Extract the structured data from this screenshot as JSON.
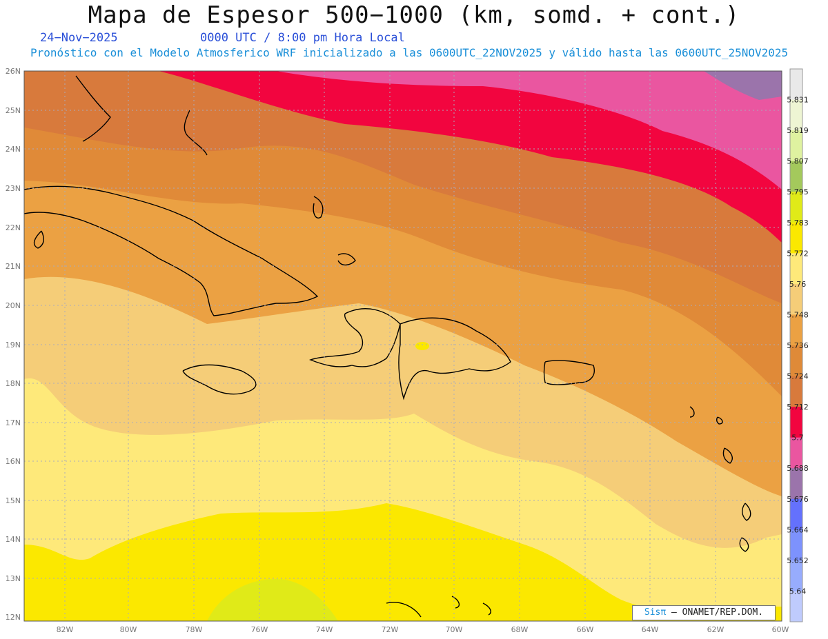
{
  "header": {
    "title": "Mapa de Espesor 500−1000 (km, somd. + cont.)",
    "date": "24−Nov−2025",
    "time": "0000 UTC / 8:00 pm Hora Local",
    "forecast": "Pronóstico con el Modelo Atmosferico WRF inicializado a las 0600UTC_22NOV2025 y válido hasta las  0600UTC_25NOV2025"
  },
  "map": {
    "lat_labels": [
      "26N",
      "25N",
      "24N",
      "23N",
      "22N",
      "21N",
      "20N",
      "19N",
      "18N",
      "17N",
      "16N",
      "15N",
      "14N",
      "13N",
      "12N"
    ],
    "lon_labels": [
      "82W",
      "80W",
      "78W",
      "76W",
      "74W",
      "72W",
      "70W",
      "68W",
      "66W",
      "64W",
      "62W",
      "60W"
    ],
    "credit_brand": "Sisπ",
    "credit_text": "– ONAMET/REP.DOM."
  },
  "colorbar": {
    "labels": [
      "5.831",
      "5.819",
      "5.807",
      "5.795",
      "5.783",
      "5.772",
      "5.76",
      "5.748",
      "5.736",
      "5.724",
      "5.712",
      "5.7",
      "5.688",
      "5.676",
      "5.664",
      "5.652",
      "5.64"
    ],
    "colors": [
      "#e9e9e9",
      "#eef5d3",
      "#dff2a0",
      "#a4c95c",
      "#e0ea18",
      "#fbe800",
      "#fee97a",
      "#f5cd78",
      "#eba143",
      "#df8a38",
      "#d87a3c",
      "#f2053f",
      "#ea56a0",
      "#9b74ab",
      "#6471fd",
      "#7d92fd",
      "#97acfd",
      "#bfcbfd"
    ]
  }
}
